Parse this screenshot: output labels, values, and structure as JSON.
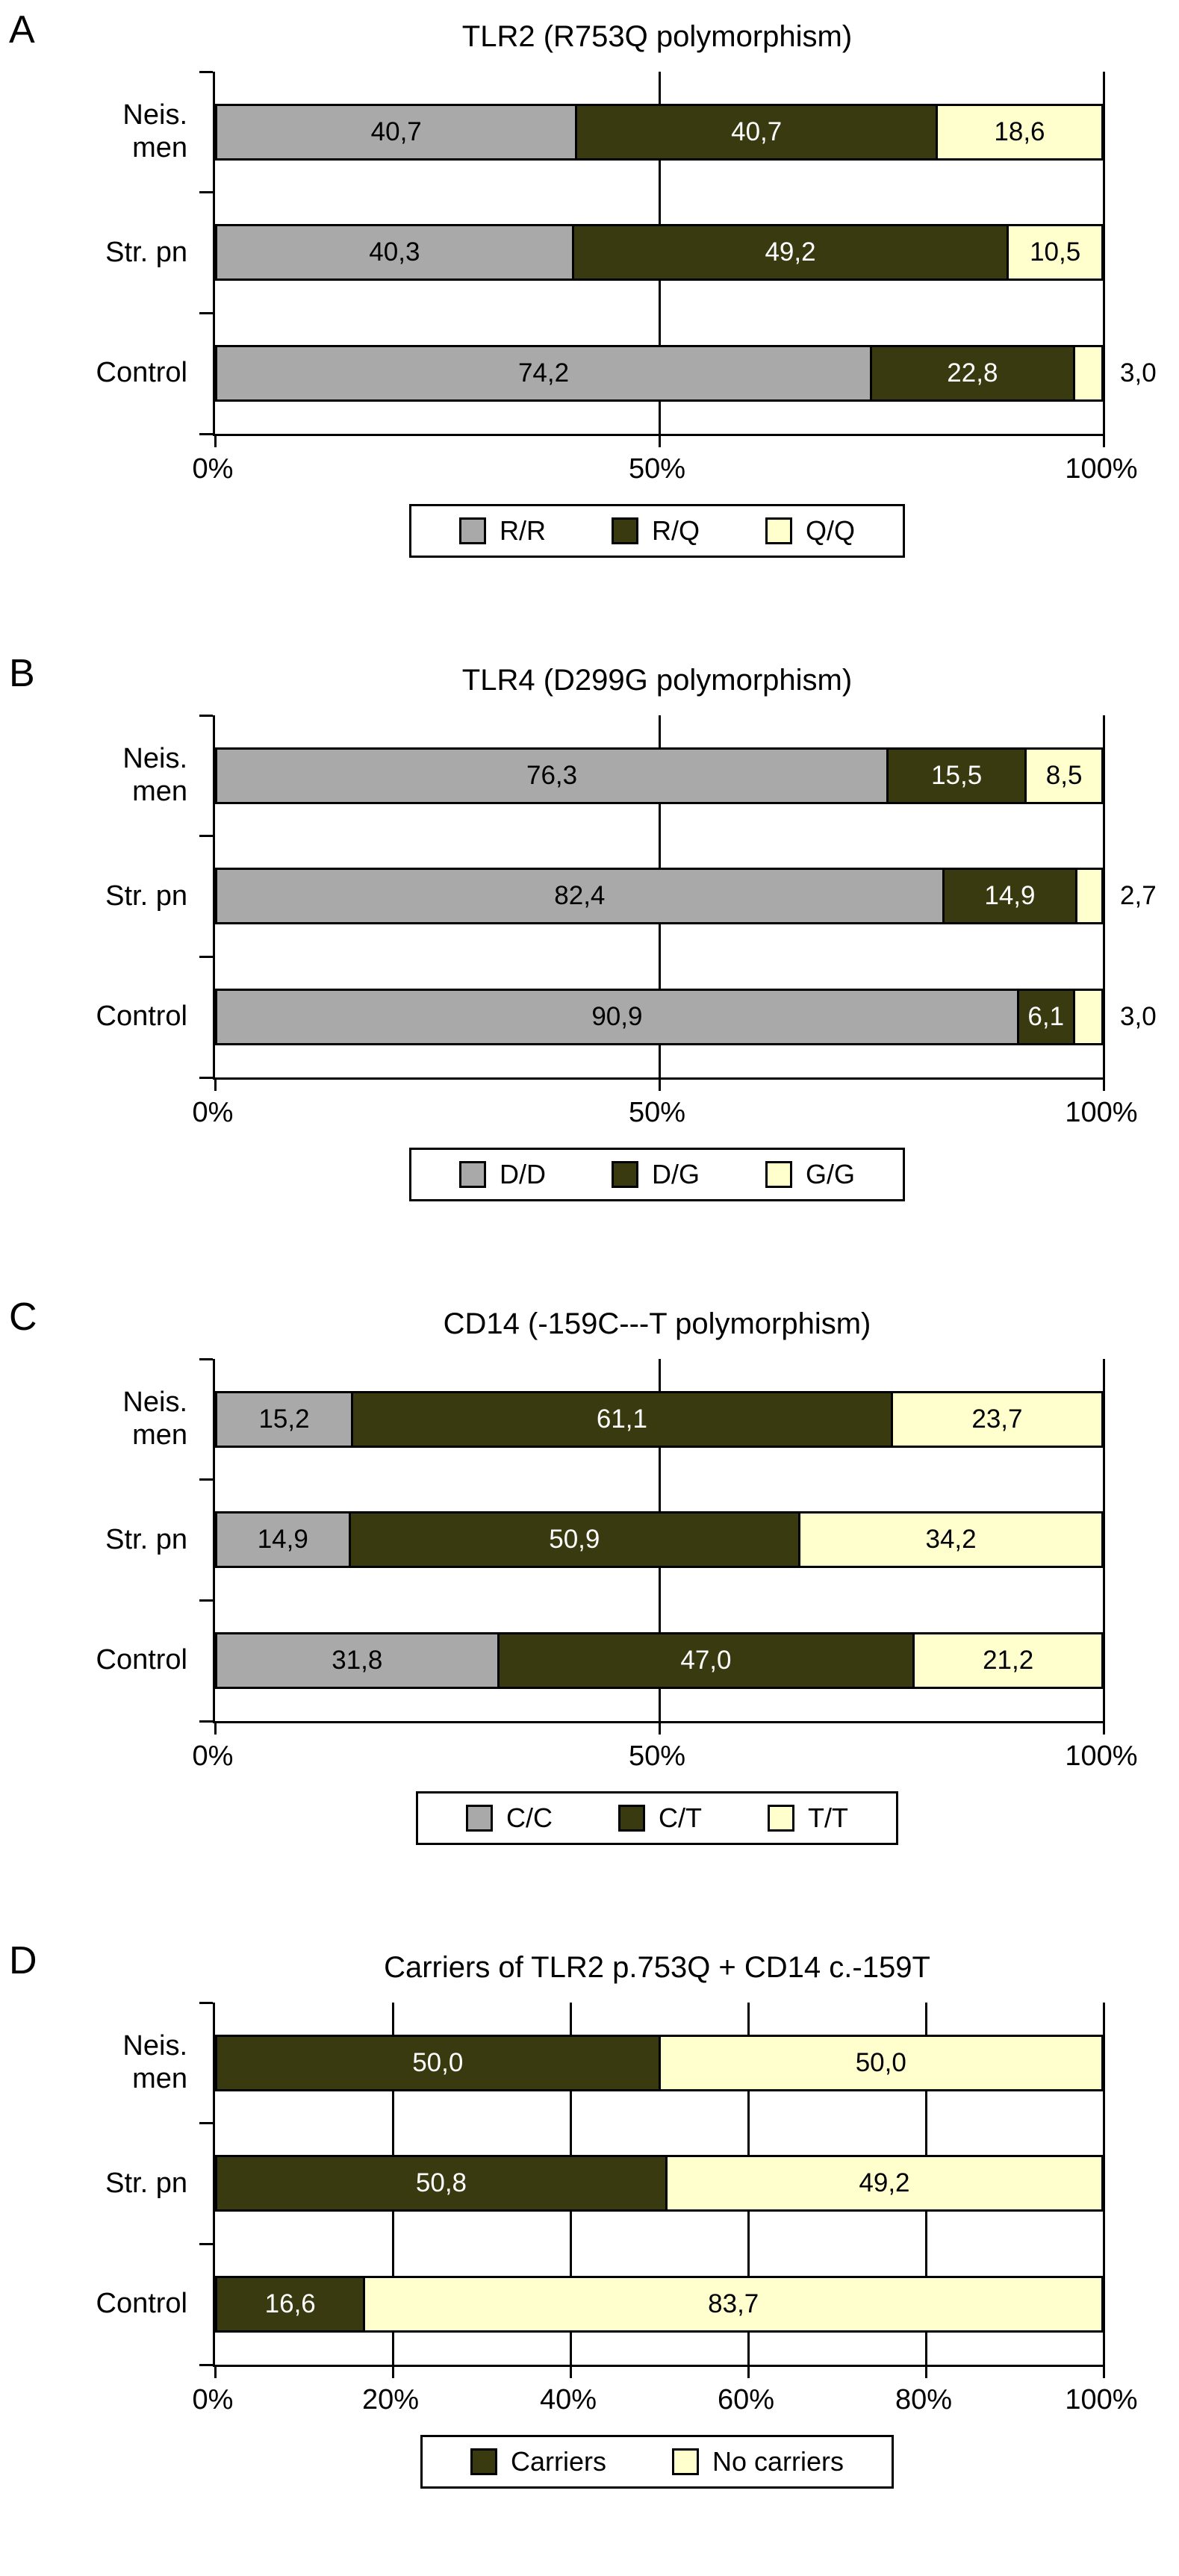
{
  "figure": {
    "background": "#ffffff",
    "axis_color": "#000000"
  },
  "chart_data": [
    {
      "panel": "A",
      "type": "bar",
      "orientation": "horizontal-stacked",
      "title": "TLR2 (R753Q polymorphism)",
      "categories": [
        "Neis.\nmen",
        "Str. pn",
        "Control"
      ],
      "xlim": [
        0,
        100
      ],
      "grid": true,
      "legend_position": "bottom",
      "x_ticks": [
        {
          "label": "0%",
          "value": 0
        },
        {
          "label": "50%",
          "value": 50
        },
        {
          "label": "100%",
          "value": 100
        }
      ],
      "series": [
        {
          "name": "R/R",
          "color": "#a9a9a9",
          "text": "#000000",
          "values": [
            40.7,
            40.3,
            74.2
          ],
          "labels": [
            "40,7",
            "40,3",
            "74,2"
          ]
        },
        {
          "name": "R/Q",
          "color": "#3a3a10",
          "text": "#ffffff",
          "values": [
            40.7,
            49.2,
            22.8
          ],
          "labels": [
            "40,7",
            "49,2",
            "22,8"
          ]
        },
        {
          "name": "Q/Q",
          "color": "#ffffce",
          "text": "#000000",
          "values": [
            18.6,
            10.5,
            3.0
          ],
          "labels": [
            "18,6",
            "10,5",
            "3,0"
          ]
        }
      ]
    },
    {
      "panel": "B",
      "type": "bar",
      "orientation": "horizontal-stacked",
      "title": "TLR4 (D299G polymorphism)",
      "categories": [
        "Neis.\nmen",
        "Str. pn",
        "Control"
      ],
      "xlim": [
        0,
        100
      ],
      "grid": true,
      "legend_position": "bottom",
      "x_ticks": [
        {
          "label": "0%",
          "value": 0
        },
        {
          "label": "50%",
          "value": 50
        },
        {
          "label": "100%",
          "value": 100
        }
      ],
      "series": [
        {
          "name": "D/D",
          "color": "#a9a9a9",
          "text": "#000000",
          "values": [
            76.3,
            82.4,
            90.9
          ],
          "labels": [
            "76,3",
            "82,4",
            "90,9"
          ]
        },
        {
          "name": "D/G",
          "color": "#3a3a10",
          "text": "#ffffff",
          "values": [
            15.5,
            14.9,
            6.1
          ],
          "labels": [
            "15,5",
            "14,9",
            "6,1"
          ]
        },
        {
          "name": "G/G",
          "color": "#ffffce",
          "text": "#000000",
          "values": [
            8.5,
            2.7,
            3.0
          ],
          "labels": [
            "8,5",
            "2,7",
            "3,0"
          ]
        }
      ]
    },
    {
      "panel": "C",
      "type": "bar",
      "orientation": "horizontal-stacked",
      "title": "CD14 (-159C---T polymorphism)",
      "categories": [
        "Neis.\nmen",
        "Str. pn",
        "Control"
      ],
      "xlim": [
        0,
        100
      ],
      "grid": true,
      "legend_position": "bottom",
      "x_ticks": [
        {
          "label": "0%",
          "value": 0
        },
        {
          "label": "50%",
          "value": 50
        },
        {
          "label": "100%",
          "value": 100
        }
      ],
      "series": [
        {
          "name": "C/C",
          "color": "#a9a9a9",
          "text": "#000000",
          "values": [
            15.2,
            14.9,
            31.8
          ],
          "labels": [
            "15,2",
            "14,9",
            "31,8"
          ]
        },
        {
          "name": "C/T",
          "color": "#3a3a10",
          "text": "#ffffff",
          "values": [
            61.1,
            50.9,
            47.0
          ],
          "labels": [
            "61,1",
            "50,9",
            "47,0"
          ]
        },
        {
          "name": "T/T",
          "color": "#ffffce",
          "text": "#000000",
          "values": [
            23.7,
            34.2,
            21.2
          ],
          "labels": [
            "23,7",
            "34,2",
            "21,2"
          ]
        }
      ]
    },
    {
      "panel": "D",
      "type": "bar",
      "orientation": "horizontal-stacked",
      "title": "Carriers of TLR2 p.753Q + CD14 c.-159T",
      "categories": [
        "Neis.\nmen",
        "Str. pn",
        "Control"
      ],
      "xlim": [
        0,
        100
      ],
      "grid": true,
      "legend_position": "bottom",
      "x_ticks": [
        {
          "label": "0%",
          "value": 0
        },
        {
          "label": "20%",
          "value": 20
        },
        {
          "label": "40%",
          "value": 40
        },
        {
          "label": "60%",
          "value": 60
        },
        {
          "label": "80%",
          "value": 80
        },
        {
          "label": "100%",
          "value": 100
        }
      ],
      "series": [
        {
          "name": "Carriers",
          "color": "#3a3a10",
          "text": "#ffffff",
          "values": [
            50.0,
            50.8,
            16.6
          ],
          "labels": [
            "50,0",
            "50,8",
            "16,6"
          ]
        },
        {
          "name": "No carriers",
          "color": "#ffffce",
          "text": "#000000",
          "values": [
            50.0,
            49.2,
            83.7
          ],
          "labels": [
            "50,0",
            "49,2",
            "83,7"
          ]
        }
      ]
    }
  ]
}
